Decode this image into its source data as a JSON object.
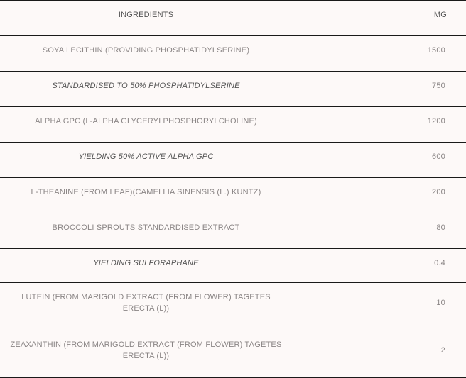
{
  "header": {
    "ingredients": "INGREDIENTS",
    "mg": "MG"
  },
  "rows": [
    {
      "name": "SOYA LECITHIN (PROVIDING PHOSPHATIDYLSERINE)",
      "mg": "1500",
      "italic": false
    },
    {
      "name": "STANDARDISED TO 50% PHOSPHATIDYLSERINE",
      "mg": "750",
      "italic": true
    },
    {
      "name": "ALPHA GPC (L-ALPHA GLYCERYLPHOSPHORYLCHOLINE)",
      "mg": "1200",
      "italic": false
    },
    {
      "name": "YIELDING 50% ACTIVE ALPHA GPC",
      "mg": "600",
      "italic": true
    },
    {
      "name": "L-THEANINE (FROM LEAF)(CAMELLIA SINENSIS (L.) KUNTZ)",
      "mg": "200",
      "italic": false
    },
    {
      "name": "BROCCOLI SPROUTS STANDARDISED EXTRACT",
      "mg": "80",
      "italic": false
    },
    {
      "name": "YIELDING SULFORAPHANE",
      "mg": "0.4",
      "italic": true
    },
    {
      "name": "LUTEIN (FROM MARIGOLD EXTRACT (FROM FLOWER) TAGETES ERECTA (L))",
      "mg": "10",
      "italic": false
    },
    {
      "name": "ZEAXANTHIN (FROM MARIGOLD EXTRACT (FROM FLOWER) TAGETES ERECTA (L))",
      "mg": "2",
      "italic": false
    }
  ]
}
